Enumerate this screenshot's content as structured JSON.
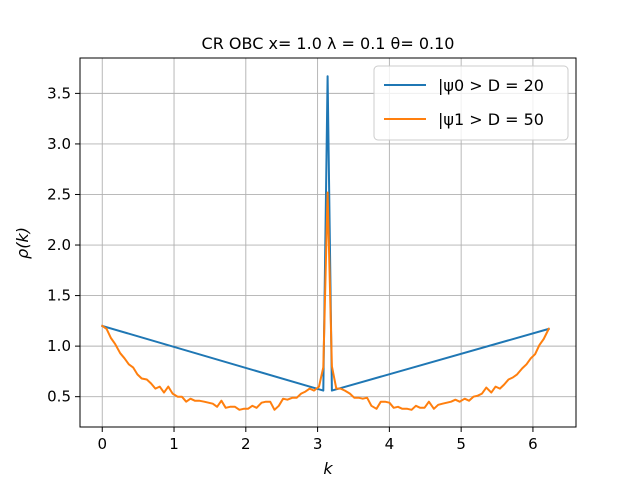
{
  "chart_data": {
    "type": "line",
    "title": "CR OBC x= 1.0 λ = 0.1 θ= 0.10",
    "xlabel": "k",
    "ylabel": "ρ(k)",
    "xlim": [
      -0.31,
      6.6
    ],
    "ylim": [
      0.2,
      3.85
    ],
    "xticks": [
      0,
      1,
      2,
      3,
      4,
      5,
      6
    ],
    "yticks": [
      0.5,
      1.0,
      1.5,
      2.0,
      2.5,
      3.0,
      3.5
    ],
    "xtick_labels": [
      "0",
      "1",
      "2",
      "3",
      "4",
      "5",
      "6"
    ],
    "ytick_labels": [
      "0.5",
      "1.0",
      "1.5",
      "2.0",
      "2.5",
      "3.0",
      "3.5"
    ],
    "grid": true,
    "legend_position": "top-right",
    "series": [
      {
        "name": "|ψ0 > D = 20",
        "color": "#1f77b4",
        "x": [
          0.0,
          3.08,
          3.14,
          3.2,
          6.22
        ],
        "y": [
          1.2,
          0.56,
          3.67,
          0.56,
          1.17
        ]
      },
      {
        "name": "|ψ1 > D = 50",
        "color": "#ff7f0e",
        "x": [
          0.0,
          0.06,
          0.12,
          0.18,
          0.25,
          0.31,
          0.37,
          0.43,
          0.49,
          0.55,
          0.62,
          0.68,
          0.74,
          0.8,
          0.86,
          0.92,
          0.98,
          1.05,
          1.11,
          1.17,
          1.23,
          1.29,
          1.35,
          1.42,
          1.48,
          1.54,
          1.6,
          1.66,
          1.72,
          1.78,
          1.85,
          1.91,
          1.97,
          2.03,
          2.09,
          2.15,
          2.22,
          2.28,
          2.34,
          2.4,
          2.46,
          2.52,
          2.58,
          2.65,
          2.71,
          2.77,
          2.83,
          2.89,
          2.95,
          3.02,
          3.08,
          3.14,
          3.2,
          3.26,
          3.32,
          3.38,
          3.45,
          3.51,
          3.57,
          3.63,
          3.69,
          3.75,
          3.82,
          3.88,
          3.94,
          4.0,
          4.06,
          4.12,
          4.18,
          4.25,
          4.31,
          4.37,
          4.43,
          4.49,
          4.55,
          4.62,
          4.68,
          4.74,
          4.8,
          4.86,
          4.92,
          4.98,
          5.05,
          5.11,
          5.17,
          5.23,
          5.29,
          5.35,
          5.42,
          5.48,
          5.54,
          5.6,
          5.66,
          5.72,
          5.78,
          5.85,
          5.91,
          5.97,
          6.03,
          6.09,
          6.15,
          6.22
        ],
        "y": [
          1.2,
          1.17,
          1.08,
          1.02,
          0.93,
          0.88,
          0.82,
          0.79,
          0.72,
          0.68,
          0.67,
          0.63,
          0.58,
          0.6,
          0.54,
          0.6,
          0.53,
          0.5,
          0.5,
          0.45,
          0.48,
          0.46,
          0.46,
          0.45,
          0.44,
          0.43,
          0.4,
          0.46,
          0.39,
          0.4,
          0.4,
          0.37,
          0.38,
          0.38,
          0.41,
          0.39,
          0.44,
          0.45,
          0.45,
          0.37,
          0.41,
          0.48,
          0.47,
          0.49,
          0.49,
          0.53,
          0.55,
          0.58,
          0.56,
          0.6,
          0.79,
          2.52,
          0.8,
          0.58,
          0.58,
          0.56,
          0.53,
          0.49,
          0.49,
          0.48,
          0.49,
          0.41,
          0.38,
          0.45,
          0.45,
          0.44,
          0.39,
          0.4,
          0.38,
          0.38,
          0.37,
          0.41,
          0.39,
          0.39,
          0.45,
          0.38,
          0.42,
          0.43,
          0.44,
          0.45,
          0.47,
          0.45,
          0.48,
          0.46,
          0.5,
          0.51,
          0.53,
          0.59,
          0.54,
          0.6,
          0.58,
          0.62,
          0.67,
          0.69,
          0.72,
          0.78,
          0.82,
          0.88,
          0.92,
          1.01,
          1.07,
          1.17
        ]
      }
    ]
  }
}
